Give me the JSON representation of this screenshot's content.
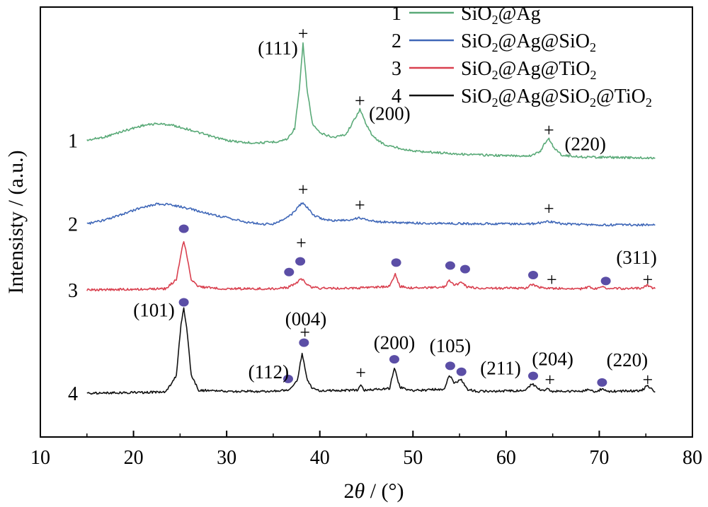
{
  "chart_data": {
    "type": "line",
    "xlabel_prefix": "2",
    "xlabel_theta": "θ",
    "xlabel_suffix": " / (°)",
    "ylabel": "Intensisty / (a.u.)",
    "xlim": [
      10,
      80
    ],
    "xticks": [
      "10",
      "20",
      "30",
      "40",
      "50",
      "60",
      "70",
      "80"
    ],
    "legend": {
      "position": "top-right"
    },
    "series": [
      {
        "id": "1",
        "name_parts": [
          "SiO",
          "2",
          "@Ag"
        ],
        "color": "#5aaa78",
        "points": [
          [
            15,
            0.4
          ],
          [
            17,
            0.46
          ],
          [
            19,
            0.56
          ],
          [
            21,
            0.65
          ],
          [
            22.5,
            0.68
          ],
          [
            24,
            0.66
          ],
          [
            26,
            0.58
          ],
          [
            28,
            0.48
          ],
          [
            30,
            0.4
          ],
          [
            32,
            0.36
          ],
          [
            34,
            0.36
          ],
          [
            35.5,
            0.38
          ],
          [
            36.5,
            0.42
          ],
          [
            37.3,
            0.6
          ],
          [
            37.8,
            1.25
          ],
          [
            38.2,
            2.03
          ],
          [
            38.6,
            1.3
          ],
          [
            39.2,
            0.68
          ],
          [
            40,
            0.52
          ],
          [
            41.5,
            0.45
          ],
          [
            42.8,
            0.5
          ],
          [
            43.6,
            0.72
          ],
          [
            44.3,
            0.92
          ],
          [
            44.9,
            0.7
          ],
          [
            45.7,
            0.46
          ],
          [
            47,
            0.32
          ],
          [
            50,
            0.22
          ],
          [
            53,
            0.19
          ],
          [
            56,
            0.16
          ],
          [
            60,
            0.14
          ],
          [
            62.5,
            0.14
          ],
          [
            63.6,
            0.2
          ],
          [
            64.2,
            0.36
          ],
          [
            64.6,
            0.42
          ],
          [
            65.2,
            0.26
          ],
          [
            66,
            0.15
          ],
          [
            68,
            0.12
          ],
          [
            72,
            0.11
          ],
          [
            76,
            0.1
          ]
        ]
      },
      {
        "id": "2",
        "name_parts": [
          "SiO",
          "2",
          "@Ag@SiO",
          "2"
        ],
        "color": "#3f67b8",
        "points": [
          [
            15,
            0.02
          ],
          [
            17,
            0.08
          ],
          [
            19,
            0.19
          ],
          [
            21,
            0.3
          ],
          [
            22.5,
            0.35
          ],
          [
            24,
            0.34
          ],
          [
            26,
            0.27
          ],
          [
            28,
            0.19
          ],
          [
            30,
            0.12
          ],
          [
            32,
            0.05
          ],
          [
            34,
            0.01
          ],
          [
            35,
            0.02
          ],
          [
            36,
            0.08
          ],
          [
            37,
            0.18
          ],
          [
            37.8,
            0.32
          ],
          [
            38.2,
            0.38
          ],
          [
            38.6,
            0.3
          ],
          [
            39.3,
            0.16
          ],
          [
            40.5,
            0.09
          ],
          [
            42,
            0.07
          ],
          [
            43.5,
            0.09
          ],
          [
            44.3,
            0.12
          ],
          [
            45,
            0.09
          ],
          [
            46.5,
            0.05
          ],
          [
            50,
            0.03
          ],
          [
            55,
            0.02
          ],
          [
            60,
            0.02
          ],
          [
            63,
            0.02
          ],
          [
            64.5,
            0.06
          ],
          [
            66,
            0.02
          ],
          [
            70,
            0.0
          ],
          [
            76,
            0.0
          ]
        ]
      },
      {
        "id": "3",
        "name_parts": [
          "SiO",
          "2",
          "@Ag@TiO",
          "2"
        ],
        "color": "#d9404f",
        "points": [
          [
            15,
            0.0
          ],
          [
            20,
            0.01
          ],
          [
            23.5,
            0.02
          ],
          [
            24.6,
            0.18
          ],
          [
            25.1,
            0.6
          ],
          [
            25.4,
            0.83
          ],
          [
            25.7,
            0.6
          ],
          [
            26.2,
            0.18
          ],
          [
            27,
            0.05
          ],
          [
            30,
            0.02
          ],
          [
            35,
            0.02
          ],
          [
            36.6,
            0.04
          ],
          [
            37,
            0.08
          ],
          [
            37.5,
            0.12
          ],
          [
            38,
            0.19
          ],
          [
            38.4,
            0.13
          ],
          [
            39,
            0.05
          ],
          [
            40,
            0.03
          ],
          [
            44,
            0.03
          ],
          [
            47.5,
            0.06
          ],
          [
            48.1,
            0.26
          ],
          [
            48.6,
            0.06
          ],
          [
            50,
            0.03
          ],
          [
            53.4,
            0.05
          ],
          [
            53.9,
            0.16
          ],
          [
            54.4,
            0.09
          ],
          [
            54.8,
            0.1
          ],
          [
            55.2,
            0.14
          ],
          [
            55.8,
            0.05
          ],
          [
            57,
            0.03
          ],
          [
            62,
            0.03
          ],
          [
            62.8,
            0.09
          ],
          [
            63.3,
            0.06
          ],
          [
            64,
            0.03
          ],
          [
            68,
            0.02
          ],
          [
            69,
            0.05
          ],
          [
            69.5,
            0.02
          ],
          [
            70,
            0.03
          ],
          [
            70.5,
            0.05
          ],
          [
            71,
            0.02
          ],
          [
            74.5,
            0.03
          ],
          [
            75.2,
            0.08
          ],
          [
            75.8,
            0.03
          ],
          [
            76,
            0.02
          ]
        ]
      },
      {
        "id": "4",
        "name_parts": [
          "SiO",
          "2",
          "@Ag@SiO",
          "2",
          "@TiO",
          "2"
        ],
        "color": "#111111",
        "points": [
          [
            15,
            0.0
          ],
          [
            20,
            0.01
          ],
          [
            23.5,
            0.02
          ],
          [
            24.6,
            0.3
          ],
          [
            25.1,
            1.15
          ],
          [
            25.4,
            1.43
          ],
          [
            25.7,
            1.12
          ],
          [
            26.2,
            0.3
          ],
          [
            27,
            0.05
          ],
          [
            30,
            0.03
          ],
          [
            35,
            0.03
          ],
          [
            36.6,
            0.05
          ],
          [
            37,
            0.09
          ],
          [
            37.6,
            0.22
          ],
          [
            38.1,
            0.68
          ],
          [
            38.6,
            0.25
          ],
          [
            39.2,
            0.08
          ],
          [
            40,
            0.04
          ],
          [
            44,
            0.05
          ],
          [
            44.4,
            0.12
          ],
          [
            44.8,
            0.05
          ],
          [
            47.5,
            0.08
          ],
          [
            48,
            0.43
          ],
          [
            48.6,
            0.1
          ],
          [
            50,
            0.04
          ],
          [
            53.4,
            0.07
          ],
          [
            53.9,
            0.31
          ],
          [
            54.4,
            0.18
          ],
          [
            54.8,
            0.2
          ],
          [
            55.2,
            0.22
          ],
          [
            55.9,
            0.06
          ],
          [
            57,
            0.03
          ],
          [
            62,
            0.04
          ],
          [
            62.8,
            0.16
          ],
          [
            63.3,
            0.09
          ],
          [
            64,
            0.04
          ],
          [
            64.5,
            0.07
          ],
          [
            65,
            0.03
          ],
          [
            68,
            0.03
          ],
          [
            69,
            0.07
          ],
          [
            69.5,
            0.03
          ],
          [
            70,
            0.05
          ],
          [
            70.4,
            0.08
          ],
          [
            71,
            0.03
          ],
          [
            74.5,
            0.04
          ],
          [
            75.2,
            0.13
          ],
          [
            75.8,
            0.04
          ],
          [
            76,
            0.02
          ]
        ]
      }
    ],
    "curve_labels": [
      "1",
      "2",
      "3",
      "4"
    ],
    "annotations": [
      {
        "text": "(111)",
        "x": 35.5,
        "y": 1.95,
        "series": "1"
      },
      {
        "text": "(200)",
        "x": 47.5,
        "y": 0.85,
        "series": "1"
      },
      {
        "text": "(220)",
        "x": 68.5,
        "y": 0.34,
        "series": "1"
      },
      {
        "text": "(311)",
        "x": 74.0,
        "y": 0.55,
        "series": "3"
      },
      {
        "text": "(101)",
        "x": 22.2,
        "y": 1.4,
        "series": "4"
      },
      {
        "text": "(004)",
        "x": 38.5,
        "y": 1.25,
        "series": "4"
      },
      {
        "text": "(200)",
        "x": 48.0,
        "y": 0.85,
        "series": "4"
      },
      {
        "text": "(105)",
        "x": 54.0,
        "y": 0.8,
        "series": "4"
      },
      {
        "text": "(211)",
        "x": 59.4,
        "y": 0.42,
        "series": "4"
      },
      {
        "text": "(204)",
        "x": 65.0,
        "y": 0.58,
        "series": "4"
      },
      {
        "text": "(220)",
        "x": 73.0,
        "y": 0.56,
        "series": "4"
      },
      {
        "text": "(112)",
        "x": 34.5,
        "y": 0.36,
        "series": "4"
      }
    ],
    "marker_legend": {
      "plus": "+"
    },
    "plus_markers": [
      {
        "x": 38.2,
        "y": 2.2,
        "series": "1"
      },
      {
        "x": 44.3,
        "y": 1.07,
        "series": "1"
      },
      {
        "x": 64.6,
        "y": 0.58,
        "series": "1"
      },
      {
        "x": 38.2,
        "y": 0.6,
        "series": "2"
      },
      {
        "x": 44.3,
        "y": 0.34,
        "series": "2"
      },
      {
        "x": 64.6,
        "y": 0.28,
        "series": "2"
      },
      {
        "x": 38.0,
        "y": 0.8,
        "series": "3"
      },
      {
        "x": 64.9,
        "y": 0.18,
        "series": "3"
      },
      {
        "x": 75.2,
        "y": 0.18,
        "series": "3"
      },
      {
        "x": 38.4,
        "y": 1.03,
        "series": "4"
      },
      {
        "x": 44.4,
        "y": 0.35,
        "series": "4"
      },
      {
        "x": 64.7,
        "y": 0.23,
        "series": "4"
      },
      {
        "x": 75.2,
        "y": 0.23,
        "series": "4"
      }
    ],
    "circle_markers": [
      {
        "x": 25.4,
        "y": 1.03,
        "series": "3"
      },
      {
        "x": 36.7,
        "y": 0.3,
        "series": "3"
      },
      {
        "x": 37.9,
        "y": 0.48,
        "series": "3"
      },
      {
        "x": 48.2,
        "y": 0.46,
        "series": "3"
      },
      {
        "x": 54.0,
        "y": 0.41,
        "series": "3"
      },
      {
        "x": 55.6,
        "y": 0.35,
        "series": "3"
      },
      {
        "x": 62.9,
        "y": 0.25,
        "series": "3"
      },
      {
        "x": 70.7,
        "y": 0.15,
        "series": "3"
      },
      {
        "x": 25.4,
        "y": 1.53,
        "series": "4"
      },
      {
        "x": 36.6,
        "y": 0.24,
        "series": "4"
      },
      {
        "x": 38.3,
        "y": 0.85,
        "series": "4"
      },
      {
        "x": 48.0,
        "y": 0.57,
        "series": "4"
      },
      {
        "x": 54.0,
        "y": 0.46,
        "series": "4"
      },
      {
        "x": 55.2,
        "y": 0.36,
        "series": "4"
      },
      {
        "x": 62.9,
        "y": 0.29,
        "series": "4"
      },
      {
        "x": 70.3,
        "y": 0.18,
        "series": "4"
      }
    ],
    "marker_color": "#5b4ea6",
    "grid": false
  }
}
